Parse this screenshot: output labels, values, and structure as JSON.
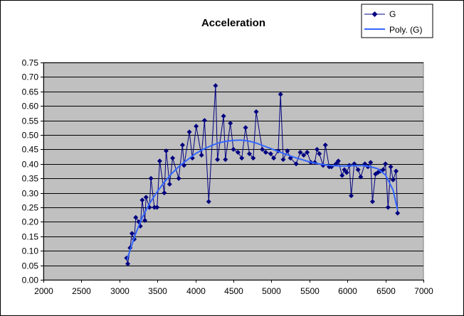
{
  "chart_data": {
    "type": "scatter",
    "title": "Acceleration",
    "xlim": [
      2000,
      7000
    ],
    "ylim": [
      0,
      0.75
    ],
    "x_ticks": [
      2000,
      2500,
      3000,
      3500,
      4000,
      4500,
      5000,
      5500,
      6000,
      6500,
      7000
    ],
    "y_ticks": [
      0.0,
      0.05,
      0.1,
      0.15,
      0.2,
      0.25,
      0.3,
      0.35,
      0.4,
      0.45,
      0.5,
      0.55,
      0.6,
      0.65,
      0.7,
      0.75
    ],
    "grid": "horizontal",
    "plot_background": "#C0C0C0",
    "legend_position": "top-right",
    "series": [
      {
        "name": "G",
        "color": "#000080",
        "marker": "diamond",
        "points": [
          [
            3095,
            0.075
          ],
          [
            3110,
            0.055
          ],
          [
            3140,
            0.11
          ],
          [
            3165,
            0.16
          ],
          [
            3195,
            0.14
          ],
          [
            3215,
            0.215
          ],
          [
            3255,
            0.2
          ],
          [
            3275,
            0.185
          ],
          [
            3300,
            0.275
          ],
          [
            3335,
            0.205
          ],
          [
            3350,
            0.285
          ],
          [
            3395,
            0.25
          ],
          [
            3415,
            0.35
          ],
          [
            3460,
            0.25
          ],
          [
            3495,
            0.25
          ],
          [
            3530,
            0.41
          ],
          [
            3590,
            0.3
          ],
          [
            3615,
            0.445
          ],
          [
            3660,
            0.33
          ],
          [
            3700,
            0.42
          ],
          [
            3780,
            0.35
          ],
          [
            3830,
            0.465
          ],
          [
            3850,
            0.395
          ],
          [
            3920,
            0.51
          ],
          [
            3960,
            0.42
          ],
          [
            4010,
            0.53
          ],
          [
            4080,
            0.43
          ],
          [
            4120,
            0.55
          ],
          [
            4175,
            0.27
          ],
          [
            4265,
            0.67
          ],
          [
            4290,
            0.415
          ],
          [
            4370,
            0.565
          ],
          [
            4395,
            0.415
          ],
          [
            4460,
            0.54
          ],
          [
            4500,
            0.45
          ],
          [
            4560,
            0.44
          ],
          [
            4610,
            0.42
          ],
          [
            4660,
            0.525
          ],
          [
            4710,
            0.435
          ],
          [
            4760,
            0.42
          ],
          [
            4800,
            0.58
          ],
          [
            4880,
            0.45
          ],
          [
            4925,
            0.44
          ],
          [
            4990,
            0.435
          ],
          [
            5030,
            0.42
          ],
          [
            5090,
            0.445
          ],
          [
            5120,
            0.64
          ],
          [
            5155,
            0.415
          ],
          [
            5210,
            0.445
          ],
          [
            5250,
            0.42
          ],
          [
            5325,
            0.4
          ],
          [
            5380,
            0.44
          ],
          [
            5425,
            0.43
          ],
          [
            5470,
            0.44
          ],
          [
            5520,
            0.405
          ],
          [
            5570,
            0.405
          ],
          [
            5600,
            0.45
          ],
          [
            5630,
            0.435
          ],
          [
            5680,
            0.395
          ],
          [
            5710,
            0.465
          ],
          [
            5760,
            0.39
          ],
          [
            5790,
            0.39
          ],
          [
            5850,
            0.4
          ],
          [
            5880,
            0.41
          ],
          [
            5930,
            0.36
          ],
          [
            5960,
            0.38
          ],
          [
            5990,
            0.37
          ],
          [
            6025,
            0.395
          ],
          [
            6050,
            0.29
          ],
          [
            6090,
            0.4
          ],
          [
            6140,
            0.38
          ],
          [
            6175,
            0.355
          ],
          [
            6230,
            0.4
          ],
          [
            6270,
            0.39
          ],
          [
            6305,
            0.405
          ],
          [
            6330,
            0.27
          ],
          [
            6370,
            0.365
          ],
          [
            6400,
            0.37
          ],
          [
            6430,
            0.375
          ],
          [
            6470,
            0.38
          ],
          [
            6500,
            0.4
          ],
          [
            6535,
            0.25
          ],
          [
            6570,
            0.39
          ],
          [
            6600,
            0.345
          ],
          [
            6640,
            0.375
          ],
          [
            6660,
            0.23
          ]
        ]
      },
      {
        "name": "Poly. (G)",
        "color": "#3366FF",
        "type": "trendline",
        "points": [
          [
            3100,
            0.07
          ],
          [
            3200,
            0.15
          ],
          [
            3300,
            0.215
          ],
          [
            3400,
            0.265
          ],
          [
            3500,
            0.305
          ],
          [
            3600,
            0.34
          ],
          [
            3700,
            0.37
          ],
          [
            3800,
            0.395
          ],
          [
            3900,
            0.415
          ],
          [
            4000,
            0.435
          ],
          [
            4100,
            0.45
          ],
          [
            4200,
            0.462
          ],
          [
            4300,
            0.472
          ],
          [
            4400,
            0.478
          ],
          [
            4500,
            0.481
          ],
          [
            4600,
            0.482
          ],
          [
            4700,
            0.479
          ],
          [
            4800,
            0.472
          ],
          [
            4900,
            0.462
          ],
          [
            5000,
            0.452
          ],
          [
            5100,
            0.442
          ],
          [
            5200,
            0.432
          ],
          [
            5300,
            0.423
          ],
          [
            5400,
            0.415
          ],
          [
            5500,
            0.407
          ],
          [
            5600,
            0.401
          ],
          [
            5700,
            0.397
          ],
          [
            5800,
            0.394
          ],
          [
            5900,
            0.393
          ],
          [
            6000,
            0.393
          ],
          [
            6100,
            0.394
          ],
          [
            6200,
            0.394
          ],
          [
            6300,
            0.391
          ],
          [
            6400,
            0.383
          ],
          [
            6500,
            0.362
          ],
          [
            6600,
            0.31
          ],
          [
            6660,
            0.24
          ]
        ]
      }
    ]
  }
}
